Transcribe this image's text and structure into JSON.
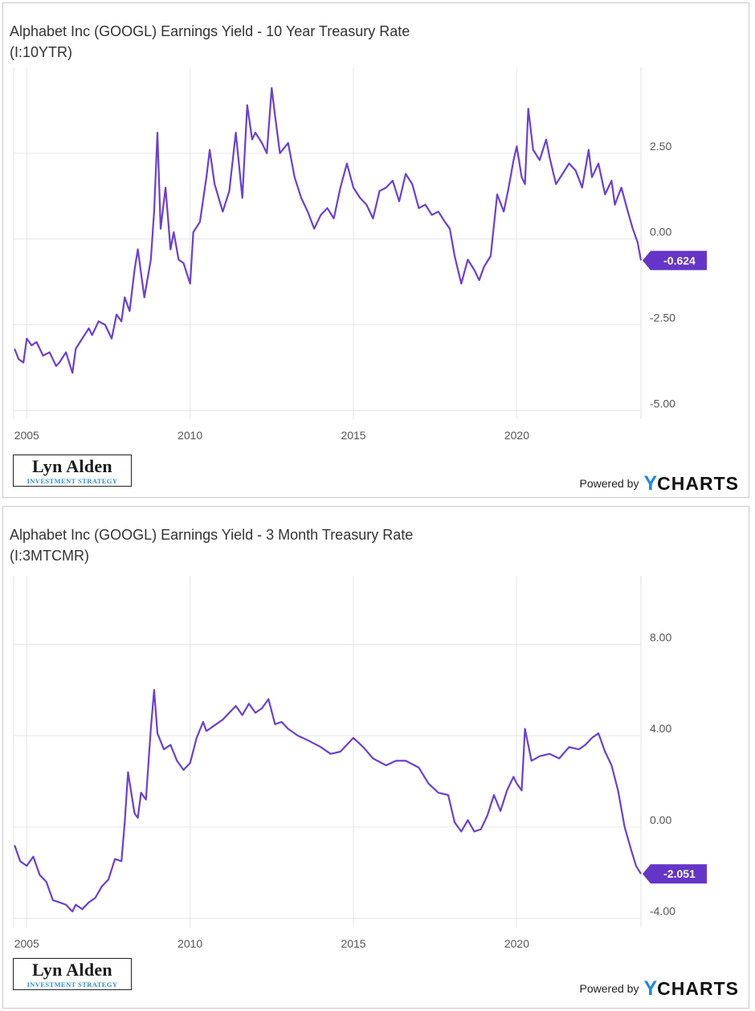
{
  "colors": {
    "line": "#6a3fd6",
    "badge": "#6535c8",
    "grid": "#e6e6e6",
    "brand_accent": "#1e88e5"
  },
  "watermark": {
    "name": "Lyn Alden",
    "tagline": "INVESTMENT STRATEGY"
  },
  "powered": {
    "text": "Powered by",
    "brand_y": "Y",
    "brand_rest": "CHARTS"
  },
  "chart_data": [
    {
      "type": "line",
      "title": "Alphabet Inc (GOOGL) Earnings Yield - 10 Year Treasury Rate",
      "subtitle": "(I:10YTR)",
      "x_ticks": [
        2005,
        2010,
        2015,
        2020
      ],
      "x_tick_labels": [
        "2005",
        "2010",
        "2015",
        "2020"
      ],
      "y_ticks": [
        2.5,
        0,
        -2.5,
        -5
      ],
      "y_tick_labels": [
        "2.50",
        "0.00",
        "-2.50",
        "-5.00"
      ],
      "xlim": [
        2004.6,
        2023.8
      ],
      "ylim": [
        -5.25,
        5.0
      ],
      "last_value": -0.624,
      "last_label": "-0.624",
      "series": [
        {
          "name": "GOOGL Earnings Yield - 10Y Treasury",
          "x": [
            2004.63,
            2004.75,
            2004.9,
            2005.0,
            2005.15,
            2005.3,
            2005.5,
            2005.7,
            2005.9,
            2006.0,
            2006.2,
            2006.4,
            2006.5,
            2006.7,
            2006.9,
            2007.0,
            2007.2,
            2007.4,
            2007.6,
            2007.75,
            2007.9,
            2008.0,
            2008.15,
            2008.3,
            2008.4,
            2008.6,
            2008.8,
            2008.9,
            2009.0,
            2009.1,
            2009.25,
            2009.4,
            2009.5,
            2009.65,
            2009.8,
            2010.0,
            2010.1,
            2010.3,
            2010.5,
            2010.6,
            2010.75,
            2011.0,
            2011.2,
            2011.4,
            2011.6,
            2011.75,
            2011.9,
            2012.0,
            2012.2,
            2012.35,
            2012.5,
            2012.6,
            2012.75,
            2013.0,
            2013.2,
            2013.4,
            2013.6,
            2013.8,
            2014.0,
            2014.2,
            2014.4,
            2014.6,
            2014.8,
            2015.0,
            2015.2,
            2015.4,
            2015.6,
            2015.8,
            2016.0,
            2016.2,
            2016.4,
            2016.6,
            2016.8,
            2017.0,
            2017.2,
            2017.4,
            2017.6,
            2017.8,
            2017.95,
            2018.1,
            2018.3,
            2018.5,
            2018.7,
            2018.85,
            2019.0,
            2019.2,
            2019.4,
            2019.6,
            2019.75,
            2019.9,
            2020.0,
            2020.15,
            2020.25,
            2020.35,
            2020.5,
            2020.7,
            2020.9,
            2021.0,
            2021.2,
            2021.4,
            2021.6,
            2021.8,
            2022.0,
            2022.2,
            2022.3,
            2022.5,
            2022.7,
            2022.9,
            2023.0,
            2023.2,
            2023.4,
            2023.55,
            2023.7,
            2023.8
          ],
          "y": [
            -3.2,
            -3.5,
            -3.6,
            -2.9,
            -3.1,
            -3.0,
            -3.4,
            -3.3,
            -3.7,
            -3.6,
            -3.3,
            -3.9,
            -3.2,
            -2.9,
            -2.6,
            -2.8,
            -2.4,
            -2.5,
            -2.9,
            -2.2,
            -2.4,
            -1.7,
            -2.1,
            -0.9,
            -0.3,
            -1.7,
            -0.6,
            0.8,
            3.1,
            0.3,
            1.5,
            -0.3,
            0.2,
            -0.6,
            -0.7,
            -1.3,
            0.2,
            0.5,
            1.8,
            2.6,
            1.6,
            0.8,
            1.4,
            3.1,
            1.2,
            3.9,
            2.9,
            3.1,
            2.8,
            2.5,
            4.4,
            3.6,
            2.5,
            2.8,
            1.8,
            1.2,
            0.8,
            0.3,
            0.7,
            0.9,
            0.6,
            1.5,
            2.2,
            1.5,
            1.2,
            1.0,
            0.6,
            1.4,
            1.5,
            1.7,
            1.1,
            1.9,
            1.6,
            0.9,
            1.0,
            0.7,
            0.8,
            0.5,
            0.3,
            -0.5,
            -1.3,
            -0.6,
            -0.9,
            -1.2,
            -0.8,
            -0.5,
            1.3,
            0.8,
            1.5,
            2.3,
            2.7,
            1.8,
            1.6,
            3.8,
            2.6,
            2.3,
            2.9,
            2.4,
            1.6,
            1.9,
            2.2,
            2.0,
            1.5,
            2.6,
            1.8,
            2.2,
            1.3,
            1.7,
            1.0,
            1.5,
            0.8,
            0.3,
            -0.1,
            -0.624
          ]
        }
      ]
    },
    {
      "type": "line",
      "title": "Alphabet Inc (GOOGL) Earnings Yield - 3 Month Treasury Rate",
      "subtitle": "(I:3MTCMR)",
      "x_ticks": [
        2005,
        2010,
        2015,
        2020
      ],
      "x_tick_labels": [
        "2005",
        "2010",
        "2015",
        "2020"
      ],
      "y_ticks": [
        8,
        4,
        0,
        -4
      ],
      "y_tick_labels": [
        "8.00",
        "4.00",
        "0.00",
        "-4.00"
      ],
      "xlim": [
        2004.6,
        2023.8
      ],
      "ylim": [
        -4.4,
        11.0
      ],
      "last_value": -2.051,
      "last_label": "-2.051",
      "series": [
        {
          "name": "GOOGL Earnings Yield - 3M Treasury",
          "x": [
            2004.63,
            2004.8,
            2005.0,
            2005.2,
            2005.4,
            2005.6,
            2005.8,
            2006.0,
            2006.2,
            2006.4,
            2006.5,
            2006.7,
            2006.9,
            2007.1,
            2007.3,
            2007.5,
            2007.7,
            2007.9,
            2008.0,
            2008.1,
            2008.3,
            2008.4,
            2008.5,
            2008.65,
            2008.8,
            2008.9,
            2009.0,
            2009.2,
            2009.4,
            2009.6,
            2009.8,
            2010.0,
            2010.2,
            2010.4,
            2010.5,
            2010.7,
            2011.0,
            2011.2,
            2011.4,
            2011.6,
            2011.8,
            2012.0,
            2012.2,
            2012.4,
            2012.6,
            2012.8,
            2013.0,
            2013.3,
            2013.6,
            2014.0,
            2014.3,
            2014.6,
            2015.0,
            2015.3,
            2015.6,
            2016.0,
            2016.3,
            2016.6,
            2017.0,
            2017.3,
            2017.6,
            2017.9,
            2018.1,
            2018.3,
            2018.5,
            2018.7,
            2018.9,
            2019.1,
            2019.3,
            2019.5,
            2019.7,
            2019.9,
            2020.0,
            2020.15,
            2020.25,
            2020.45,
            2020.7,
            2021.0,
            2021.3,
            2021.6,
            2021.9,
            2022.1,
            2022.3,
            2022.5,
            2022.7,
            2022.9,
            2023.1,
            2023.3,
            2023.5,
            2023.65,
            2023.8
          ],
          "y": [
            -0.8,
            -1.5,
            -1.7,
            -1.3,
            -2.1,
            -2.4,
            -3.2,
            -3.3,
            -3.4,
            -3.7,
            -3.4,
            -3.6,
            -3.3,
            -3.1,
            -2.6,
            -2.3,
            -1.4,
            -1.5,
            0.2,
            2.4,
            0.6,
            0.4,
            1.5,
            1.2,
            4.3,
            6.0,
            4.1,
            3.4,
            3.6,
            2.9,
            2.5,
            2.8,
            3.9,
            4.6,
            4.2,
            4.4,
            4.7,
            5.0,
            5.3,
            4.9,
            5.4,
            5.0,
            5.2,
            5.6,
            4.5,
            4.6,
            4.3,
            4.0,
            3.8,
            3.5,
            3.2,
            3.3,
            3.9,
            3.5,
            3.0,
            2.7,
            2.9,
            2.9,
            2.6,
            1.9,
            1.5,
            1.4,
            0.2,
            -0.2,
            0.3,
            -0.2,
            -0.1,
            0.5,
            1.4,
            0.7,
            1.6,
            2.2,
            1.9,
            1.6,
            4.3,
            2.9,
            3.1,
            3.2,
            3.0,
            3.5,
            3.4,
            3.6,
            3.9,
            4.1,
            3.3,
            2.7,
            1.6,
            0.0,
            -1.0,
            -1.7,
            -2.051
          ]
        }
      ]
    }
  ]
}
